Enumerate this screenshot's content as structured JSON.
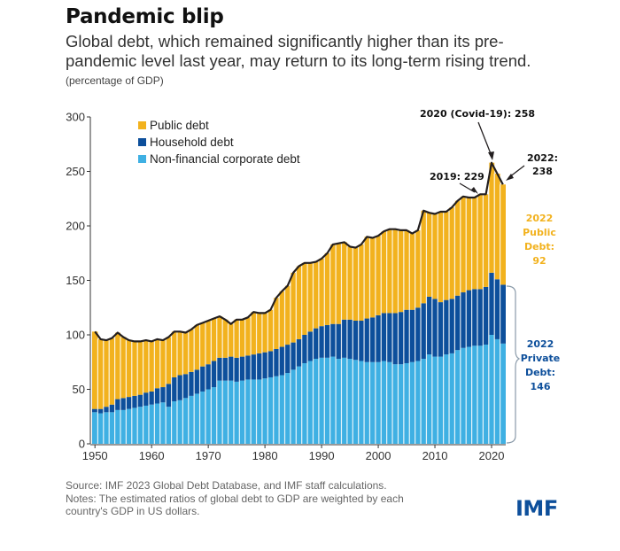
{
  "header": {
    "title": "Pandemic blip",
    "subtitle": "Global debt, which remained significantly higher than its pre-pandemic level last year, may return to its long-term rising trend.",
    "unit": "(percentage of GDP)"
  },
  "colors": {
    "public": "#f2b21e",
    "household": "#0d4f9b",
    "corporate": "#3fb0e3",
    "outline": "#231f20",
    "divider": "#ffffff"
  },
  "footer": {
    "source": "Source: IMF 2023 Global Debt Database, and IMF staff calculations.",
    "notes": "Notes: The estimated ratios of global debt to GDP are weighted by each country's GDP in US dollars.",
    "logo": "IMF"
  },
  "chart_data": {
    "type": "bar",
    "stacked": true,
    "title": "Pandemic blip",
    "xlabel": "",
    "ylabel": "percentage of GDP",
    "ylim": [
      0,
      300
    ],
    "yticks": [
      0,
      50,
      100,
      150,
      200,
      250,
      300
    ],
    "xticks": [
      1950,
      1960,
      1970,
      1980,
      1990,
      2000,
      2010,
      2020
    ],
    "legend": [
      "Public debt",
      "Household debt",
      "Non-financial corporate debt"
    ],
    "legend_position": "top-left",
    "grid": false,
    "x": [
      1950,
      1951,
      1952,
      1953,
      1954,
      1955,
      1956,
      1957,
      1958,
      1959,
      1960,
      1961,
      1962,
      1963,
      1964,
      1965,
      1966,
      1967,
      1968,
      1969,
      1970,
      1971,
      1972,
      1973,
      1974,
      1975,
      1976,
      1977,
      1978,
      1979,
      1980,
      1981,
      1982,
      1983,
      1984,
      1985,
      1986,
      1987,
      1988,
      1989,
      1990,
      1991,
      1992,
      1993,
      1994,
      1995,
      1996,
      1997,
      1998,
      1999,
      2000,
      2001,
      2002,
      2003,
      2004,
      2005,
      2006,
      2007,
      2008,
      2009,
      2010,
      2011,
      2012,
      2013,
      2014,
      2015,
      2016,
      2017,
      2018,
      2019,
      2020,
      2021,
      2022
    ],
    "series": [
      {
        "name": "Non-financial corporate debt",
        "values": [
          29,
          28,
          29,
          29,
          31,
          31,
          32,
          33,
          34,
          35,
          36,
          37,
          38,
          34,
          39,
          40,
          42,
          44,
          46,
          48,
          50,
          52,
          58,
          58,
          58,
          57,
          58,
          59,
          59,
          59,
          60,
          61,
          62,
          63,
          65,
          68,
          71,
          74,
          76,
          78,
          79,
          79,
          80,
          78,
          79,
          78,
          77,
          76,
          75,
          75,
          75,
          76,
          75,
          73,
          73,
          74,
          75,
          76,
          78,
          82,
          80,
          80,
          82,
          83,
          86,
          88,
          89,
          90,
          90,
          91,
          100,
          96,
          92
        ]
      },
      {
        "name": "Household debt",
        "values": [
          3,
          4,
          5,
          7,
          10,
          11,
          11,
          11,
          11,
          12,
          12,
          14,
          14,
          21,
          22,
          23,
          22,
          22,
          22,
          23,
          23,
          24,
          21,
          21,
          22,
          22,
          22,
          22,
          23,
          24,
          24,
          24,
          25,
          26,
          26,
          25,
          25,
          26,
          27,
          28,
          29,
          30,
          30,
          32,
          35,
          36,
          36,
          37,
          40,
          41,
          43,
          44,
          45,
          47,
          48,
          49,
          48,
          49,
          51,
          53,
          53,
          50,
          50,
          50,
          50,
          51,
          52,
          52,
          52,
          53,
          57,
          55,
          54
        ]
      },
      {
        "name": "Public debt",
        "values": [
          71,
          64,
          61,
          61,
          61,
          56,
          52,
          50,
          49,
          48,
          46,
          45,
          43,
          43,
          42,
          40,
          38,
          39,
          41,
          40,
          40,
          39,
          38,
          35,
          30,
          35,
          34,
          35,
          39,
          37,
          36,
          38,
          47,
          51,
          54,
          64,
          67,
          66,
          63,
          61,
          62,
          66,
          73,
          74,
          71,
          67,
          67,
          70,
          75,
          73,
          73,
          75,
          77,
          77,
          75,
          73,
          70,
          71,
          85,
          77,
          78,
          83,
          81,
          84,
          87,
          88,
          85,
          84,
          87,
          85,
          101,
          97,
          92
        ]
      }
    ],
    "totals_line": {
      "name": "Total debt",
      "values": [
        103,
        96,
        95,
        97,
        102,
        98,
        95,
        94,
        94,
        95,
        94,
        96,
        95,
        98,
        103,
        103,
        102,
        105,
        109,
        111,
        113,
        115,
        117,
        114,
        110,
        114,
        114,
        116,
        121,
        120,
        120,
        123,
        134,
        140,
        145,
        157,
        163,
        166,
        166,
        167,
        170,
        175,
        183,
        184,
        185,
        181,
        180,
        183,
        190,
        189,
        191,
        195,
        197,
        197,
        196,
        196,
        193,
        196,
        214,
        212,
        211,
        213,
        213,
        217,
        223,
        227,
        226,
        226,
        229,
        229,
        258,
        248,
        238
      ]
    },
    "annotations": [
      {
        "label": "2019: 229",
        "year": 2019,
        "value": 229
      },
      {
        "label": "2020 (Covid-19): 258",
        "year": 2020,
        "value": 258
      },
      {
        "label_line1": "2022:",
        "label_line2": "238",
        "year": 2022,
        "value": 238
      },
      {
        "lines": [
          "2022",
          "Public",
          "Debt:",
          "92"
        ],
        "series": "Public debt",
        "year": 2022,
        "value": 92
      },
      {
        "lines": [
          "2022",
          "Private",
          "Debt:",
          "146"
        ],
        "series": "Private debt",
        "year": 2022,
        "value": 146
      }
    ]
  }
}
